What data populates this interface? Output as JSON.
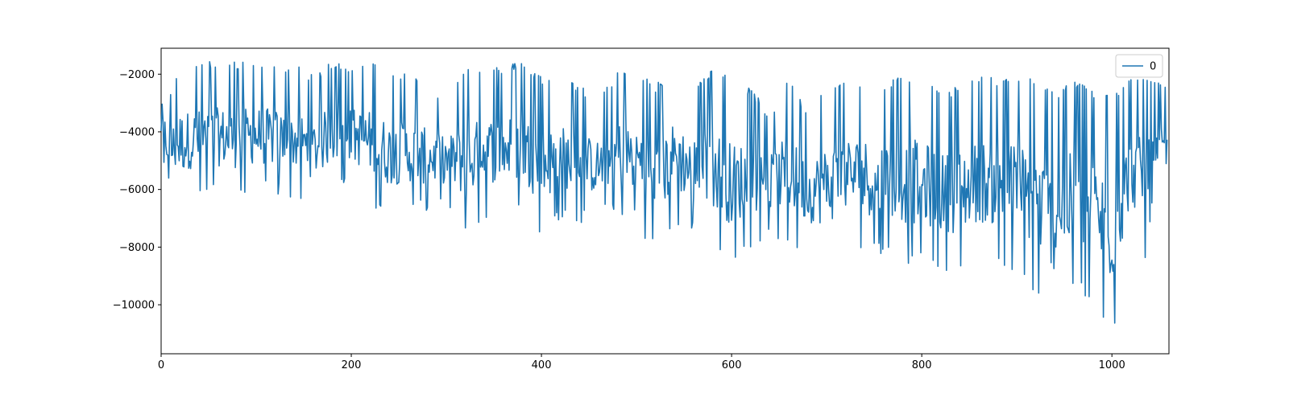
{
  "chart_data": {
    "type": "line",
    "title": "",
    "xlabel": "",
    "ylabel": "",
    "xlim": [
      0,
      1060
    ],
    "ylim": [
      -11700,
      -1100
    ],
    "x_ticks": [
      0,
      200,
      400,
      600,
      800,
      1000
    ],
    "x_tick_labels": [
      "0",
      "200",
      "400",
      "600",
      "800",
      "1000"
    ],
    "y_ticks": [
      -2000,
      -4000,
      -6000,
      -8000,
      -10000
    ],
    "y_tick_labels": [
      "−2000",
      "−4000",
      "−6000",
      "−8000",
      "−10000"
    ],
    "grid": false,
    "legend": {
      "position": "top-right",
      "entries": [
        "0"
      ]
    },
    "color": "#1f77b4",
    "series": [
      {
        "name": "0",
        "anchors_x": [
          0,
          5,
          10,
          20,
          30,
          45,
          60,
          80,
          100,
          120,
          140,
          160,
          180,
          200,
          220,
          240,
          260,
          280,
          300,
          320,
          340,
          360,
          380,
          400,
          420,
          440,
          460,
          480,
          500,
          520,
          540,
          560,
          580,
          600,
          620,
          640,
          660,
          680,
          700,
          720,
          740,
          760,
          780,
          800,
          820,
          840,
          860,
          880,
          900,
          920,
          940,
          960,
          980,
          1000,
          1020,
          1040,
          1058
        ],
        "upper_envelope": [
          -1800,
          -2500,
          -2700,
          -1700,
          -1800,
          -1700,
          -1700,
          -1700,
          -1700,
          -1800,
          -1800,
          -2200,
          -1650,
          -1800,
          -1700,
          -2000,
          -2100,
          -2500,
          -3000,
          -1900,
          -1800,
          -1900,
          -1650,
          -2200,
          -2200,
          -2500,
          -3000,
          -2000,
          -2000,
          -2500,
          -1900,
          -2500,
          -1900,
          -2300,
          -2600,
          -3500,
          -2200,
          -3500,
          -2500,
          -2300,
          -2300,
          -2400,
          -2200,
          -2100,
          -2800,
          -2500,
          -2200,
          -2300,
          -2100,
          -2300,
          -2800,
          -2300,
          -2700,
          -2800,
          -2300,
          -2200,
          -2500
        ],
        "lower_envelope": [
          -5200,
          -5700,
          -6200,
          -6600,
          -6300,
          -6300,
          -6200,
          -6300,
          -6100,
          -6200,
          -6300,
          -6600,
          -6000,
          -6000,
          -6500,
          -7000,
          -6800,
          -6800,
          -6600,
          -7600,
          -7000,
          -6800,
          -6900,
          -7700,
          -7000,
          -7200,
          -7000,
          -7000,
          -7200,
          -8300,
          -7200,
          -7600,
          -7900,
          -8700,
          -8000,
          -7600,
          -8000,
          -8200,
          -8600,
          -8000,
          -8200,
          -8300,
          -8600,
          -8700,
          -8800,
          -9000,
          -8600,
          -8700,
          -9000,
          -9700,
          -10600,
          -9400,
          -10100,
          -11200,
          -7800,
          -8600,
          -6200
        ]
      }
    ]
  }
}
